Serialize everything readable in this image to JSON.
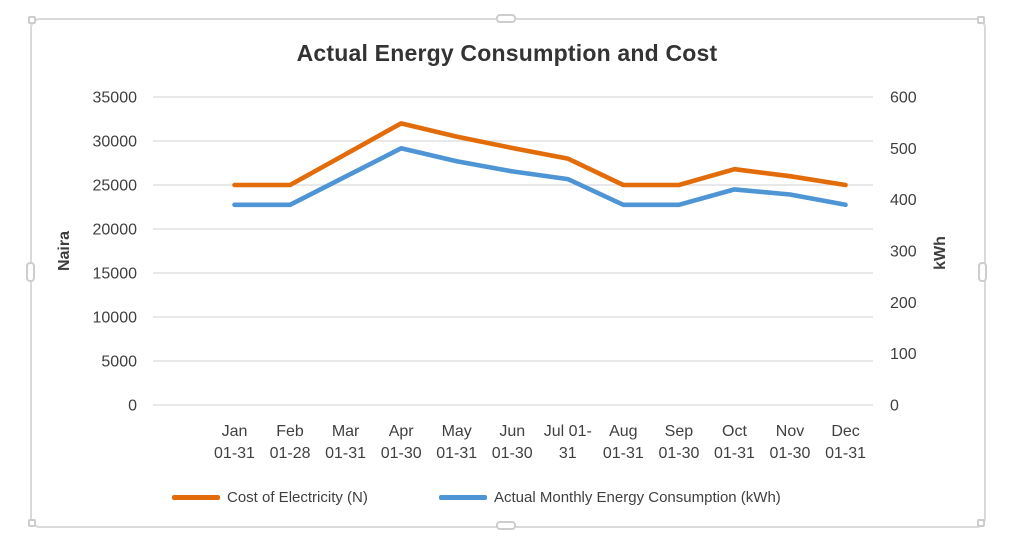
{
  "chart_data": {
    "type": "line",
    "title": "Actual Energy Consumption and Cost",
    "categories": [
      "Jan 01-31",
      "Feb 01-28",
      "Mar 01-31",
      "Apr 01-30",
      "May 01-31",
      "Jun 01-30",
      "Jul 01-31",
      "Aug 01-31",
      "Sep 01-30",
      "Oct 01-31",
      "Nov 01-30",
      "Dec 01-31"
    ],
    "category_labels": [
      {
        "line1": "Jan",
        "line2": "01-31"
      },
      {
        "line1": "Feb",
        "line2": "01-28"
      },
      {
        "line1": "Mar",
        "line2": "01-31"
      },
      {
        "line1": "Apr",
        "line2": "01-30"
      },
      {
        "line1": "May",
        "line2": "01-31"
      },
      {
        "line1": "Jun",
        "line2": "01-30"
      },
      {
        "line1": "Jul 01-",
        "line2": "31"
      },
      {
        "line1": "Aug",
        "line2": "01-31"
      },
      {
        "line1": "Sep",
        "line2": "01-30"
      },
      {
        "line1": "Oct",
        "line2": "01-31"
      },
      {
        "line1": "Nov",
        "line2": "01-30"
      },
      {
        "line1": "Dec",
        "line2": "01-31"
      }
    ],
    "series": [
      {
        "name": "Cost of Electricity (N)",
        "axis": "left",
        "color": "#E36C0A",
        "values": [
          25000,
          25000,
          28500,
          32000,
          30500,
          29200,
          28000,
          25000,
          25000,
          26800,
          26000,
          25000
        ]
      },
      {
        "name": "Actual Monthly Energy Consumption (kWh)",
        "axis": "right",
        "color": "#4E95D5",
        "values": [
          390,
          390,
          445,
          500,
          475,
          455,
          440,
          390,
          390,
          420,
          410,
          390
        ]
      }
    ],
    "left_axis": {
      "label": "Naira",
      "min": 0,
      "max": 35000,
      "step": 5000,
      "ticks": [
        35000,
        30000,
        25000,
        20000,
        15000,
        10000,
        5000,
        0
      ]
    },
    "right_axis": {
      "label": "kWh",
      "min": 0,
      "max": 600,
      "step": 100,
      "ticks": [
        600,
        500,
        400,
        300,
        200,
        100,
        0
      ]
    },
    "grid": true,
    "gridline_color": "#D9D9D9",
    "text_color": "#404040",
    "legend_position": "bottom"
  }
}
